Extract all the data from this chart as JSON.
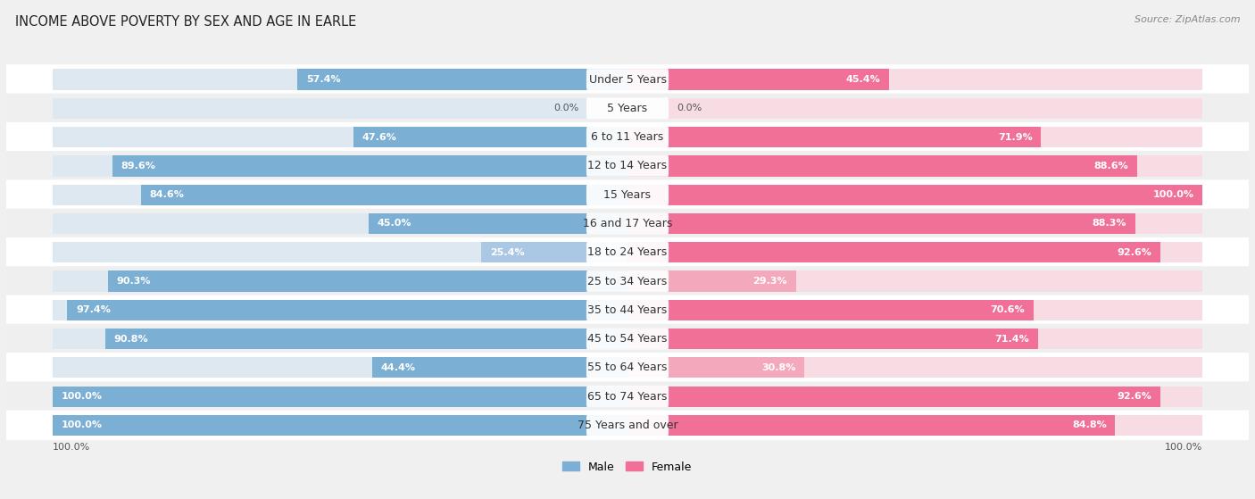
{
  "title": "INCOME ABOVE POVERTY BY SEX AND AGE IN EARLE",
  "source": "Source: ZipAtlas.com",
  "categories": [
    "Under 5 Years",
    "5 Years",
    "6 to 11 Years",
    "12 to 14 Years",
    "15 Years",
    "16 and 17 Years",
    "18 to 24 Years",
    "25 to 34 Years",
    "35 to 44 Years",
    "45 to 54 Years",
    "55 to 64 Years",
    "65 to 74 Years",
    "75 Years and over"
  ],
  "male": [
    57.4,
    0.0,
    47.6,
    89.6,
    84.6,
    45.0,
    25.4,
    90.3,
    97.4,
    90.8,
    44.4,
    100.0,
    100.0
  ],
  "female": [
    45.4,
    0.0,
    71.9,
    88.6,
    100.0,
    88.3,
    92.6,
    29.3,
    70.6,
    71.4,
    30.8,
    92.6,
    84.8
  ],
  "male_color": "#7bafd4",
  "female_color": "#f07098",
  "male_color_light": "#aac8e4",
  "female_color_light": "#f4a8bc",
  "male_label": "Male",
  "female_label": "Female",
  "row_bg_white": "#ffffff",
  "row_bg_gray": "#efefef",
  "title_fontsize": 10.5,
  "label_fontsize": 9,
  "value_fontsize": 8,
  "legend_fontsize": 9,
  "source_fontsize": 8,
  "max_val": 100.0
}
